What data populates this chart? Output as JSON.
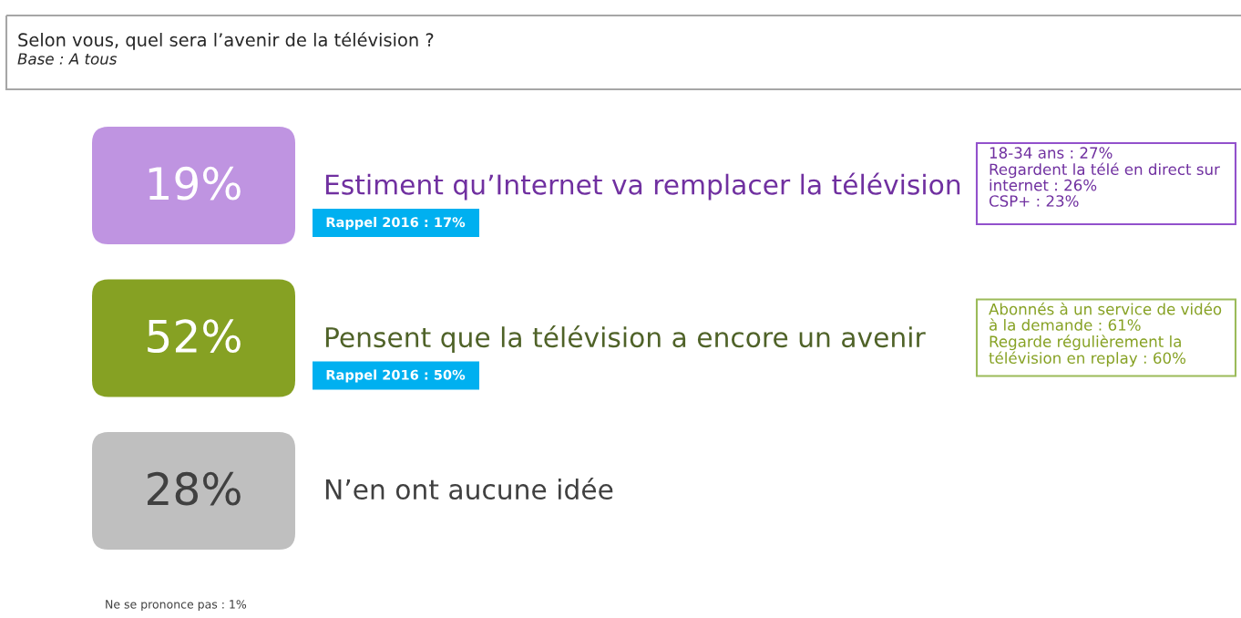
{
  "chart_data": {
    "type": "other",
    "title": "Selon vous, quel sera l’avenir de la télévision ?",
    "subtitle": "Base : A tous",
    "categories": [
      "Estiment qu’Internet va remplacer la télévision",
      "Pensent que la télévision a encore un avenir",
      "N’en ont aucune idée"
    ],
    "values": [
      19,
      52,
      28
    ],
    "value_labels": [
      "19%",
      "52%",
      "28%"
    ],
    "colors": [
      "#bf94e1",
      "#86a123",
      "#bfbfbf"
    ],
    "annotations": [
      "Rappel 2016 : 17%",
      "Rappel 2016 : 50%",
      "18-34 ans : 27%\nRegardent la télé en direct sur\ninternet : 26%\nCSP+ : 23%",
      "Abonnés à un service de vidéo\nà la demande : 61%\nRegarde régulièrement la\ntélévision en replay : 60%",
      "Ne se prononce pas : 1%"
    ]
  }
}
